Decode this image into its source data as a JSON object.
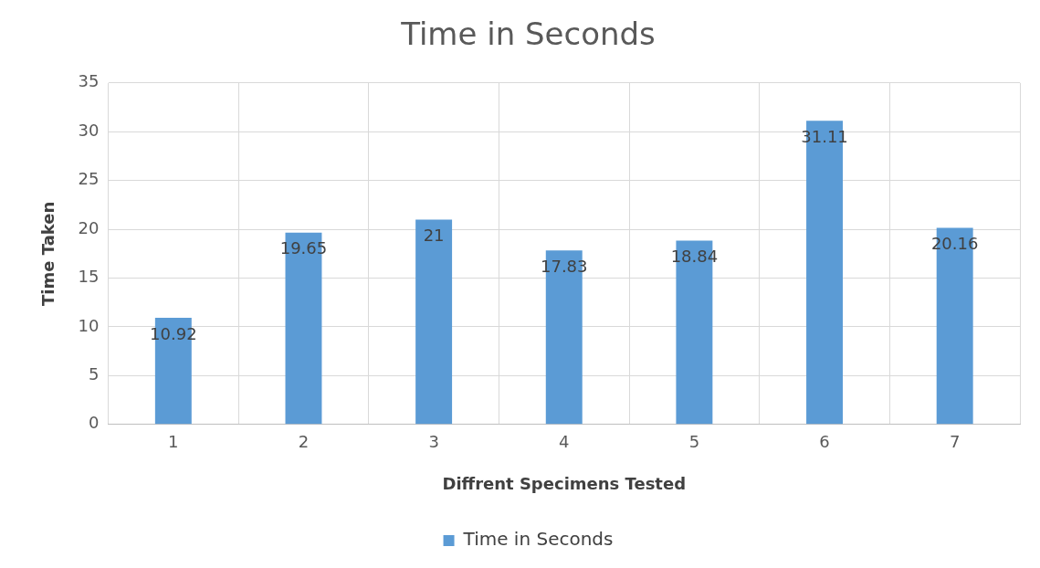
{
  "chart_data": {
    "type": "bar",
    "title": "Time in Seconds",
    "xlabel": "Diffrent Specimens Tested",
    "ylabel": "Time Taken",
    "categories": [
      "1",
      "2",
      "3",
      "4",
      "5",
      "6",
      "7"
    ],
    "series": [
      {
        "name": "Time in Seconds",
        "color": "#5b9bd5",
        "values": [
          10.92,
          19.65,
          21,
          17.83,
          18.84,
          31.11,
          20.16
        ]
      }
    ],
    "ylim": [
      0,
      35
    ],
    "yticks": [
      0,
      5,
      10,
      15,
      20,
      25,
      30,
      35
    ],
    "grid": true,
    "legend": "bottom",
    "data_labels": true
  }
}
